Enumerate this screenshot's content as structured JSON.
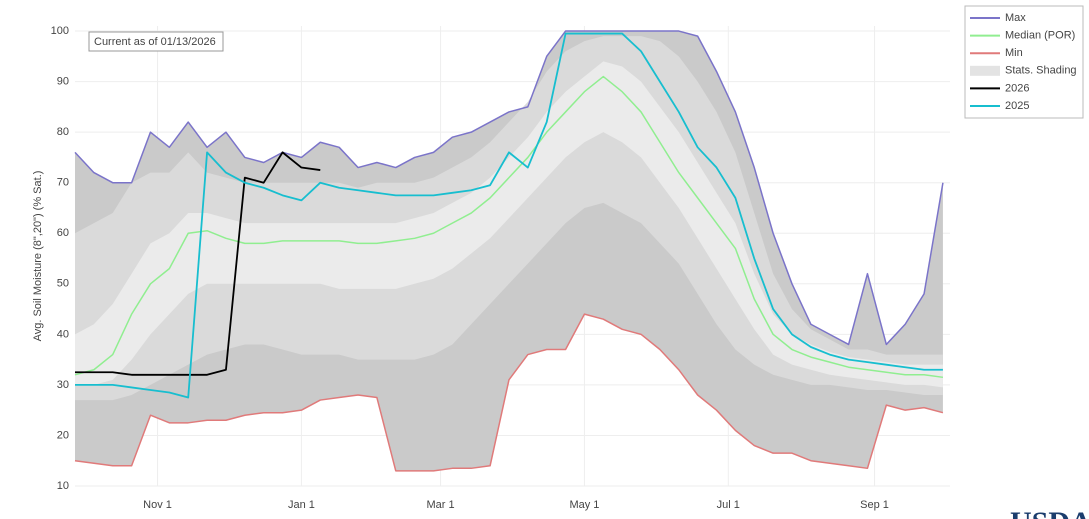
{
  "chart_data": {
    "type": "line",
    "y_label": "Avg. Soil Moisture (8\",20\") (% Sat.)",
    "annotation": "Current as of 01/13/2026",
    "logo": "USDA",
    "xlim": [
      -4,
      367
    ],
    "ylim": [
      10,
      101
    ],
    "xticks": [
      {
        "value": 31,
        "label": "Nov 1"
      },
      {
        "value": 92,
        "label": "Jan 1"
      },
      {
        "value": 151,
        "label": "Mar 1"
      },
      {
        "value": 212,
        "label": "May 1"
      },
      {
        "value": 273,
        "label": "Jul 1"
      },
      {
        "value": 335,
        "label": "Sep 1"
      }
    ],
    "yticks": [
      10,
      20,
      30,
      40,
      50,
      60,
      70,
      80,
      90,
      100
    ],
    "grid": true,
    "legend": "right",
    "x": [
      -4,
      4,
      12,
      20,
      28,
      36,
      44,
      52,
      60,
      68,
      76,
      84,
      92,
      100,
      108,
      116,
      124,
      132,
      140,
      148,
      156,
      164,
      172,
      180,
      188,
      196,
      204,
      212,
      220,
      228,
      236,
      244,
      252,
      260,
      268,
      276,
      284,
      292,
      300,
      308,
      316,
      324,
      332,
      340,
      348,
      356,
      364
    ],
    "series": [
      {
        "name": "Max",
        "color": "#7b74c9",
        "values": [
          76,
          72,
          70,
          70,
          80,
          77,
          82,
          77,
          80,
          75,
          74,
          76,
          75,
          78,
          77,
          73,
          74,
          73,
          75,
          76,
          79,
          80,
          82,
          84,
          85,
          95,
          100,
          100,
          100,
          100,
          100,
          100,
          100,
          99,
          92,
          84,
          73,
          60,
          50,
          42,
          40,
          38,
          52,
          38,
          42,
          48,
          70
        ]
      },
      {
        "name": "Median (POR)",
        "color": "#90ee90",
        "values": [
          32,
          33,
          36,
          44,
          50,
          53,
          60,
          60.5,
          59,
          58,
          58,
          58.5,
          58.5,
          58.5,
          58.5,
          58,
          58,
          58.5,
          59,
          60,
          62,
          64,
          67,
          71,
          75,
          80,
          84,
          88,
          91,
          88,
          84,
          78,
          72,
          67,
          62,
          57,
          47,
          40,
          37,
          35.5,
          34.5,
          33.5,
          33,
          32.5,
          32,
          32,
          31.5
        ]
      },
      {
        "name": "Min",
        "color": "#e07a7a",
        "values": [
          15,
          14.5,
          14,
          14,
          24,
          22.5,
          22.5,
          23,
          23,
          24,
          24.5,
          24.5,
          25,
          27,
          27.5,
          28,
          27.5,
          13,
          13,
          13,
          13.5,
          13.5,
          14,
          31,
          36,
          37,
          37,
          44,
          43,
          41,
          40,
          37,
          33,
          28,
          25,
          21,
          18,
          16.5,
          16.5,
          15,
          14.5,
          14,
          13.5,
          26,
          25,
          25.5,
          24.5
        ]
      },
      {
        "name": "Stats. Shading",
        "color": "#e3e3e3",
        "outer_color": "#cacaca",
        "bands": [
          {
            "color": "#dadada",
            "upper": [
              60,
              62,
              64,
              70,
              72,
              72,
              76,
              72,
              71,
              70,
              70,
              70,
              70,
              70,
              70,
              69,
              70,
              70,
              70,
              71,
              73,
              75,
              78,
              82,
              86,
              92,
              96,
              98,
              99,
              99,
              99,
              98,
              95,
              90,
              84,
              76,
              64,
              52,
              45,
              41,
              39,
              37,
              37,
              36,
              36,
              36,
              36
            ],
            "lower": [
              27,
              27,
              27,
              28,
              30,
              32,
              34,
              36,
              37,
              38,
              38,
              37,
              36,
              36,
              36,
              35,
              35,
              35,
              35,
              36,
              38,
              42,
              46,
              50,
              54,
              58,
              62,
              65,
              66,
              64,
              62,
              58,
              54,
              48,
              42,
              37,
              34,
              32,
              31,
              30,
              30,
              29.5,
              29,
              29,
              28.5,
              28,
              28
            ]
          },
          {
            "color": "#ebebeb",
            "upper": [
              40,
              42,
              46,
              52,
              58,
              60,
              64,
              64,
              63,
              62,
              62,
              62,
              62,
              62,
              62,
              62,
              62,
              62,
              63,
              64,
              66,
              68,
              71,
              75,
              79,
              84,
              88,
              91,
              94,
              93,
              90,
              85,
              80,
              74,
              68,
              62,
              52,
              44,
              40,
              38,
              36.5,
              35.5,
              35,
              34.5,
              34,
              34,
              34
            ],
            "lower": [
              30,
              30,
              31,
              35,
              40,
              44,
              48,
              50,
              50,
              50,
              50,
              50,
              50,
              50,
              49,
              49,
              49,
              49,
              50,
              51,
              53,
              56,
              59,
              63,
              67,
              71,
              75,
              78,
              80,
              78,
              75,
              70,
              65,
              59,
              53,
              47,
              41,
              36,
              34,
              33,
              32,
              31.5,
              31,
              30.5,
              30,
              30,
              29.5
            ]
          }
        ]
      },
      {
        "name": "2026",
        "color": "#000000",
        "values": [
          32.5,
          32.5,
          32.5,
          32,
          32,
          32,
          32,
          32,
          33,
          71,
          70,
          76,
          73,
          72.5,
          null,
          null,
          null,
          null,
          null,
          null,
          null,
          null,
          null,
          null,
          null,
          null,
          null,
          null,
          null,
          null,
          null,
          null,
          null,
          null,
          null,
          null,
          null,
          null,
          null,
          null,
          null,
          null,
          null,
          null,
          null,
          null,
          null
        ]
      },
      {
        "name": "2025",
        "color": "#17becf",
        "values": [
          30,
          30,
          30,
          29.5,
          29,
          28.5,
          27.5,
          76,
          72,
          70,
          69,
          67.5,
          66.5,
          70,
          69,
          68.5,
          68,
          67.5,
          67.5,
          67.5,
          68,
          68.5,
          69.5,
          76,
          73,
          82,
          99.5,
          99.5,
          99.5,
          99.5,
          96,
          90,
          84,
          77,
          73,
          67,
          55,
          45,
          40,
          37.5,
          36,
          35,
          34.5,
          34,
          33.5,
          33,
          33
        ]
      }
    ]
  }
}
